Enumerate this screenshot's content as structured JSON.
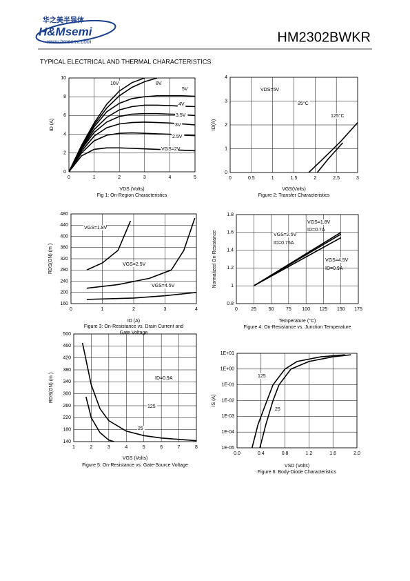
{
  "header": {
    "logo_cn": "华之美半导体",
    "logo": "H&Msemi",
    "url": "www.hmsemi.com",
    "part": "HM2302BWKR"
  },
  "section": "TYPICAL ELECTRICAL AND THERMAL CHARACTERISTICS",
  "chart_data": [
    {
      "type": "line",
      "title": [
        "Fig 1: On-Region Characteristics"
      ],
      "xlabel": "VDS (Volts)",
      "ylabel": "ID (A)",
      "xlim": [
        0,
        5
      ],
      "ylim": [
        0,
        10
      ],
      "xticks": [
        0,
        1,
        2,
        3,
        4,
        5
      ],
      "yticks": [
        0,
        2,
        4,
        6,
        8,
        10
      ],
      "grid": true,
      "annotations": [],
      "series": [
        {
          "name": "10V",
          "color": "#000000",
          "x": [
            0,
            0.5,
            1,
            1.5,
            2,
            2.5,
            3
          ],
          "values": [
            0,
            2.8,
            5.2,
            7.2,
            8.6,
            9.5,
            10
          ]
        },
        {
          "name": "8V",
          "color": "#000000",
          "x": [
            0,
            0.5,
            1,
            1.5,
            2,
            2.5,
            3,
            3.5
          ],
          "values": [
            0,
            2.7,
            5,
            6.8,
            8.1,
            9,
            9.6,
            10
          ]
        },
        {
          "name": "5V",
          "color": "#000000",
          "x": [
            0,
            0.5,
            1,
            1.5,
            2,
            2.5,
            3,
            3.5,
            4,
            4.5,
            5
          ],
          "values": [
            0,
            2.6,
            4.8,
            6.4,
            7.3,
            7.8,
            8,
            8.1,
            8.1,
            8.1,
            8.05
          ]
        },
        {
          "name": "4V",
          "color": "#000000",
          "x": [
            0,
            0.5,
            1,
            1.5,
            2,
            2.5,
            3,
            3.5,
            4,
            4.5,
            5
          ],
          "values": [
            0,
            2.5,
            4.5,
            5.8,
            6.6,
            6.95,
            7.1,
            7.1,
            7.05,
            7,
            6.95
          ]
        },
        {
          "name": "3.5V",
          "color": "#000000",
          "x": [
            0,
            0.5,
            1,
            1.5,
            2,
            2.5,
            3,
            3.5,
            4,
            4.5,
            5
          ],
          "values": [
            0,
            2.4,
            4.2,
            5.3,
            5.9,
            6.15,
            6.2,
            6.2,
            6.15,
            6.1,
            6
          ]
        },
        {
          "name": "3V",
          "color": "#000000",
          "x": [
            0,
            0.5,
            1,
            1.5,
            2,
            2.5,
            3,
            3.5,
            4,
            4.5,
            5
          ],
          "values": [
            0,
            2.2,
            3.8,
            4.7,
            5.1,
            5.25,
            5.3,
            5.25,
            5.2,
            5.1,
            5
          ]
        },
        {
          "name": "2.5V",
          "color": "#000000",
          "x": [
            0,
            0.5,
            1,
            1.5,
            2,
            2.5,
            3,
            3.5,
            4,
            4.5,
            5
          ],
          "values": [
            0,
            2,
            3.3,
            3.9,
            4.1,
            4.15,
            4.1,
            4.05,
            4,
            3.9,
            3.85
          ]
        },
        {
          "name": "VGS=2V",
          "color": "#000000",
          "x": [
            0,
            0.5,
            1,
            1.5,
            2,
            2.5,
            3,
            3.5,
            4,
            4.5,
            5
          ],
          "values": [
            0,
            1.7,
            2.4,
            2.55,
            2.55,
            2.5,
            2.45,
            2.4,
            2.35,
            2.3,
            2.25
          ]
        }
      ]
    },
    {
      "type": "line",
      "title": [
        "Figure 2: Transfer Characteristics"
      ],
      "xlabel": "VGS(Volts)",
      "ylabel": "ID(A)",
      "xlim": [
        0,
        3
      ],
      "ylim": [
        0,
        4
      ],
      "xticks": [
        0,
        0.5,
        1,
        1.5,
        2,
        2.5,
        3
      ],
      "yticks": [
        0,
        1,
        2,
        3,
        4
      ],
      "grid": true,
      "annotations": [
        "VDS=5V"
      ],
      "series": [
        {
          "name": "25°C",
          "color": "#000000",
          "x": [
            2.05,
            2.3,
            2.65
          ],
          "values": [
            0,
            0.55,
            1.25
          ]
        },
        {
          "name": "125°C",
          "color": "#000000",
          "x": [
            1.85,
            2.2,
            2.6,
            3
          ],
          "values": [
            0,
            0.6,
            1.3,
            2.1
          ]
        }
      ]
    },
    {
      "type": "line",
      "title": [
        "Figure 3: On-Resistance vs. Drain Current and",
        "Gate Voltage"
      ],
      "xlabel": "ID (A)",
      "ylabel": "RDS(ON) (m )",
      "xlim": [
        0,
        4
      ],
      "ylim": [
        160,
        480
      ],
      "xticks": [
        0,
        1,
        2,
        3,
        4
      ],
      "yticks": [
        160,
        200,
        240,
        280,
        320,
        360,
        400,
        440,
        480
      ],
      "grid": true,
      "annotations": [],
      "series": [
        {
          "name": "VGS=1.8V",
          "color": "#000000",
          "x": [
            0.5,
            1,
            1.5,
            1.9
          ],
          "values": [
            280,
            305,
            350,
            455
          ]
        },
        {
          "name": "VGS=2.5V",
          "color": "#000000",
          "x": [
            0.5,
            1.5,
            2.5,
            3.2,
            3.6,
            3.95
          ],
          "values": [
            215,
            228,
            250,
            280,
            350,
            465
          ]
        },
        {
          "name": "VGS=4.5V",
          "color": "#000000",
          "x": [
            0.5,
            2,
            3,
            4
          ],
          "values": [
            175,
            180,
            188,
            200
          ]
        }
      ]
    },
    {
      "type": "line",
      "title": [
        "Figure 4: On-Resistance vs. Junction Temperature"
      ],
      "xlabel": "Temperature (°C)",
      "ylabel": "Normalized On-Resistance",
      "xlim": [
        0,
        175
      ],
      "ylim": [
        0.8,
        1.8
      ],
      "xticks": [
        0,
        25,
        50,
        75,
        100,
        125,
        150,
        175
      ],
      "yticks": [
        0.8,
        1,
        1.2,
        1.4,
        1.6,
        1.8
      ],
      "grid": true,
      "annotations": [
        "ID=0.7A",
        "ID=0.75A",
        "ID=0.9A"
      ],
      "series": [
        {
          "name": "VGS=1.8V",
          "color": "#000000",
          "x": [
            25,
            150
          ],
          "values": [
            1,
            1.6
          ]
        },
        {
          "name": "VGS=2.5V",
          "color": "#000000",
          "x": [
            25,
            150
          ],
          "values": [
            1,
            1.58
          ]
        },
        {
          "name": "VGS=4.5V",
          "color": "#000000",
          "x": [
            25,
            150
          ],
          "values": [
            1,
            1.54
          ]
        }
      ]
    },
    {
      "type": "line",
      "title": [
        "Figure 5: On-Resistance vs. Gate-Source Voltage"
      ],
      "xlabel": "VGS (Volts)",
      "ylabel": "RDS(ON) (m )",
      "xlim": [
        1,
        8
      ],
      "ylim": [
        140,
        500
      ],
      "xticks": [
        1,
        2,
        3,
        4,
        5,
        6,
        7,
        8
      ],
      "yticks": [
        140,
        180,
        220,
        260,
        300,
        340,
        380,
        420,
        460,
        500
      ],
      "grid": true,
      "annotations": [
        "ID=0.9A"
      ],
      "series": [
        {
          "name": "125",
          "color": "#000000",
          "x": [
            1.5,
            2,
            2.5,
            3,
            4,
            5,
            6,
            8
          ],
          "values": [
            470,
            330,
            250,
            210,
            175,
            160,
            152,
            143
          ]
        },
        {
          "name": "25",
          "color": "#000000",
          "x": [
            1.7,
            2,
            2.5,
            3,
            3.3
          ],
          "values": [
            290,
            220,
            170,
            145,
            140
          ]
        }
      ]
    },
    {
      "type": "line",
      "log_y": true,
      "title": [
        "Figure 6: Body-Diode Characteristics"
      ],
      "xlabel": "VSD (Volts)",
      "ylabel": "IS (A)",
      "xlim": [
        0,
        2
      ],
      "ylim": [
        1e-05,
        10
      ],
      "xticks": [
        {
          "value": 0,
          "label": "0.0"
        },
        0.4,
        0.8,
        1.2,
        1.6,
        {
          "value": 2,
          "label": "2.0"
        }
      ],
      "yticks": [
        {
          "value": 1e-05,
          "label": "1E-05"
        },
        {
          "value": 0.0001,
          "label": "1E-04"
        },
        {
          "value": 0.001,
          "label": "1E-03"
        },
        {
          "value": 0.01,
          "label": "1E-02"
        },
        {
          "value": 0.1,
          "label": "1E-01"
        },
        {
          "value": 1,
          "label": "1E+00"
        },
        {
          "value": 10,
          "label": "1E+01"
        }
      ],
      "grid": true,
      "annotations": [],
      "series": [
        {
          "name": "125",
          "color": "#000000",
          "x": [
            0.25,
            0.35,
            0.5,
            0.6,
            0.8,
            1,
            1.4,
            1.8
          ],
          "values": [
            1e-05,
            0.0003,
            0.01,
            0.1,
            1,
            3,
            6,
            8
          ]
        },
        {
          "name": "25",
          "color": "#000000",
          "x": [
            0.38,
            0.48,
            0.6,
            0.7,
            0.9,
            1.2,
            1.6,
            1.9
          ],
          "values": [
            1e-05,
            0.0003,
            0.01,
            0.1,
            1,
            3,
            6,
            8
          ]
        }
      ]
    }
  ]
}
